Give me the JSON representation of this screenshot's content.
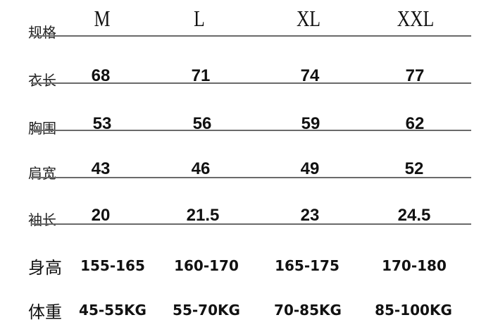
{
  "header": {
    "label": "规格",
    "sizes": [
      "M",
      "L",
      "XL",
      "XXL"
    ]
  },
  "rows": [
    {
      "label": "衣长",
      "values": [
        "68",
        "71",
        "74",
        "77"
      ]
    },
    {
      "label": "胸围",
      "values": [
        "53",
        "56",
        "59",
        "62"
      ]
    },
    {
      "label": "肩宽",
      "values": [
        "43",
        "46",
        "49",
        "52"
      ]
    },
    {
      "label": "袖长",
      "values": [
        "20",
        "21.5",
        "23",
        "24.5"
      ]
    }
  ],
  "extra_rows": [
    {
      "label": "身高",
      "values": [
        "155-165",
        "160-170",
        "165-175",
        "170-180"
      ]
    },
    {
      "label": "体重",
      "values": [
        "45-55KG",
        "55-70KG",
        "70-85KG",
        "85-100KG"
      ]
    }
  ]
}
